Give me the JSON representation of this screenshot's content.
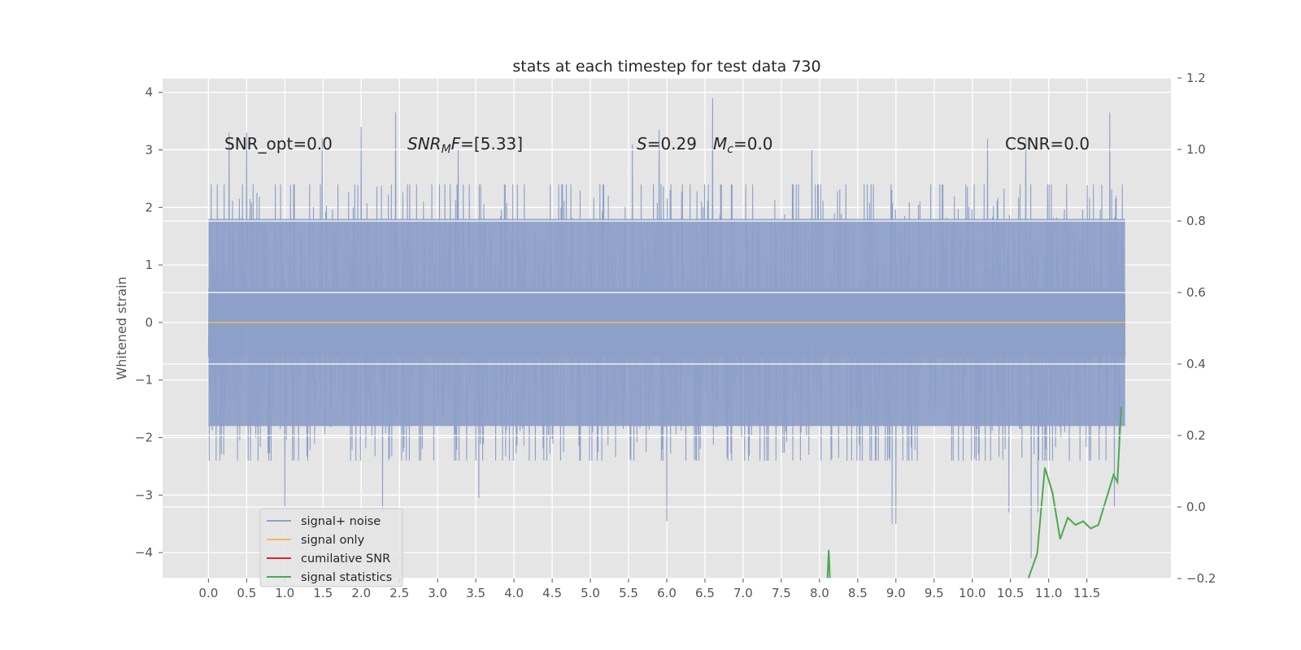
{
  "chart_data": {
    "type": "line",
    "title": "stats at each timestep for test data 730",
    "ylabel": "Whitened strain",
    "xlabel": "",
    "xlim": [
      -0.6,
      12.6
    ],
    "ylim": [
      -4.45,
      4.25
    ],
    "y2lim": [
      -0.2,
      1.2
    ],
    "grid": true,
    "legend_position": "lower-left",
    "x_ticks": [
      "0.0",
      "0.5",
      "1.0",
      "1.5",
      "2.0",
      "2.5",
      "3.0",
      "3.5",
      "4.0",
      "4.5",
      "5.0",
      "5.5",
      "6.0",
      "6.5",
      "7.0",
      "7.5",
      "8.0",
      "8.5",
      "9.0",
      "9.5",
      "10.0",
      "10.5",
      "11.0",
      "11.5"
    ],
    "y_ticks": [
      "4",
      "3",
      "2",
      "1",
      "0",
      "−1",
      "−2",
      "−3",
      "−4"
    ],
    "y2_ticks": [
      "1.2",
      "1.0",
      "0.8",
      "0.6",
      "0.4",
      "0.2",
      "0.0",
      "−0.2"
    ],
    "annotations": {
      "snr_opt": "SNR_opt=0.0",
      "snr_mf_main": "SNR",
      "snr_mf_sub": "M",
      "snr_mf_main2": "F",
      "snr_mf_value": "=[5.33]",
      "s_label": "S",
      "s_value": "=0.29",
      "mc_label": "M",
      "mc_sub": "c",
      "mc_value": "=0.0",
      "csnr": "CSNR=0.0"
    },
    "series": [
      {
        "name": "signal+ noise",
        "color": "#8da0c9",
        "x_range": [
          0.0,
          12.0
        ],
        "samples": 2400,
        "typical_range": [
          -1.8,
          1.8
        ],
        "peaks": [
          [
            0.27,
            3.3
          ],
          [
            0.5,
            3.3
          ],
          [
            1.0,
            3.2
          ],
          [
            1.49,
            3.2
          ],
          [
            2.0,
            3.4
          ],
          [
            2.45,
            3.65
          ],
          [
            3.27,
            3.0
          ],
          [
            5.55,
            3.1
          ],
          [
            5.9,
            3.35
          ],
          [
            6.6,
            3.9
          ],
          [
            7.9,
            3.0
          ],
          [
            9.0,
            3.5
          ],
          [
            10.2,
            3.2
          ],
          [
            10.7,
            3.2
          ],
          [
            11.8,
            3.65
          ]
        ],
        "troughs": [
          [
            1.0,
            -3.2
          ],
          [
            2.28,
            -3.3
          ],
          [
            3.54,
            -3.05
          ],
          [
            6.0,
            -3.45
          ],
          [
            8.95,
            -3.5
          ],
          [
            9.0,
            -3.5
          ],
          [
            10.48,
            -3.3
          ],
          [
            10.77,
            -4.1
          ],
          [
            10.86,
            -3.3
          ],
          [
            11.86,
            -3.2
          ]
        ]
      },
      {
        "name": "signal only",
        "color": "#f2b854",
        "x": [
          0.0,
          12.0
        ],
        "y": [
          0.0,
          0.0
        ]
      },
      {
        "name": "cumilative SNR",
        "color": "#d62728",
        "x": [],
        "y": []
      },
      {
        "name": "signal statistics",
        "color": "#4da851",
        "axis": "right",
        "x": [
          8.1,
          8.12,
          8.14,
          10.7,
          10.85,
          10.95,
          11.05,
          11.15,
          11.25,
          11.35,
          11.45,
          11.55,
          11.65,
          11.75,
          11.85,
          11.9,
          11.95
        ],
        "y": [
          -0.22,
          -0.12,
          -0.22,
          -0.22,
          -0.13,
          0.11,
          0.04,
          -0.09,
          -0.03,
          -0.05,
          -0.04,
          -0.06,
          -0.05,
          0.02,
          0.09,
          0.07,
          0.28
        ]
      }
    ]
  }
}
